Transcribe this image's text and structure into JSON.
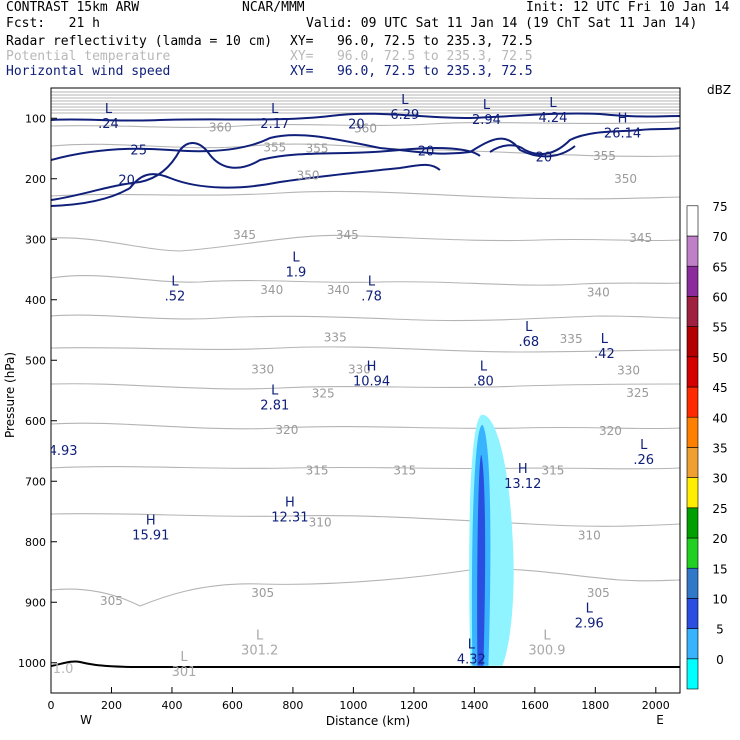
{
  "header": {
    "model": "CONTRAST 15km ARW",
    "org": "NCAR/MMM",
    "init": "Init: 12 UTC Fri 10 Jan 14",
    "fcst": "Fcst:   21 h",
    "valid": "Valid: 09 UTC Sat 11 Jan 14 (19 ChT Sat 11 Jan 14)",
    "fields": [
      {
        "name": "Radar reflectivity (lamda = 10 cm)",
        "xy": "XY=   96.0, 72.5 to 235.3, 72.5",
        "color": "#000000"
      },
      {
        "name": "Potential temperature",
        "xy": "XY=   96.0, 72.5 to 235.3, 72.5",
        "color": "#b8b8b8"
      },
      {
        "name": "Horizontal wind speed",
        "xy": "XY=   96.0, 72.5 to 235.3, 72.5",
        "color": "#10207a"
      }
    ]
  },
  "chart_data": {
    "type": "cross-section",
    "xlabel": "Distance (km)",
    "ylabel": "Pressure (hPa)",
    "xlim": [
      0,
      2080
    ],
    "ylim": [
      1050,
      50
    ],
    "xticks": [
      0,
      200,
      400,
      600,
      800,
      1000,
      1200,
      1400,
      1600,
      1800,
      2000
    ],
    "yticks": [
      100,
      200,
      300,
      400,
      500,
      600,
      700,
      800,
      900,
      1000
    ],
    "left_label": "W",
    "right_label": "E",
    "theta_contour_labels": [
      {
        "text": "360",
        "x": 560,
        "p": 115
      },
      {
        "text": "360",
        "x": 1040,
        "p": 117
      },
      {
        "text": "355",
        "x": 740,
        "p": 148
      },
      {
        "text": "355",
        "x": 880,
        "p": 150
      },
      {
        "text": "355",
        "x": 1830,
        "p": 162
      },
      {
        "text": "350",
        "x": 850,
        "p": 195
      },
      {
        "text": "350",
        "x": 1900,
        "p": 200
      },
      {
        "text": "345",
        "x": 640,
        "p": 293
      },
      {
        "text": "345",
        "x": 980,
        "p": 293
      },
      {
        "text": "345",
        "x": 1950,
        "p": 298
      },
      {
        "text": "340",
        "x": 730,
        "p": 384
      },
      {
        "text": "340",
        "x": 950,
        "p": 384
      },
      {
        "text": "340",
        "x": 1810,
        "p": 388
      },
      {
        "text": "335",
        "x": 940,
        "p": 462
      },
      {
        "text": "335",
        "x": 1720,
        "p": 465
      },
      {
        "text": "330",
        "x": 700,
        "p": 515
      },
      {
        "text": "330",
        "x": 1020,
        "p": 515
      },
      {
        "text": "330",
        "x": 1910,
        "p": 517
      },
      {
        "text": "325",
        "x": 900,
        "p": 555
      },
      {
        "text": "325",
        "x": 1940,
        "p": 554
      },
      {
        "text": "320",
        "x": 780,
        "p": 615
      },
      {
        "text": "320",
        "x": 1850,
        "p": 617
      },
      {
        "text": "315",
        "x": 880,
        "p": 682
      },
      {
        "text": "315",
        "x": 1170,
        "p": 682
      },
      {
        "text": "315",
        "x": 1660,
        "p": 682
      },
      {
        "text": "310",
        "x": 890,
        "p": 768
      },
      {
        "text": "310",
        "x": 1780,
        "p": 790
      },
      {
        "text": "305",
        "x": 200,
        "p": 898
      },
      {
        "text": "305",
        "x": 700,
        "p": 885
      },
      {
        "text": "305",
        "x": 1810,
        "p": 885
      }
    ],
    "wind_contour_labels": [
      {
        "text": "20",
        "x": 1010,
        "p": 110
      },
      {
        "text": "20",
        "x": 1240,
        "p": 155
      },
      {
        "text": "20",
        "x": 1630,
        "p": 165
      },
      {
        "text": "25",
        "x": 290,
        "p": 153
      },
      {
        "text": "20",
        "x": 250,
        "p": 203
      }
    ],
    "wind_extrema": [
      {
        "type": "L",
        "value": ".24",
        "x": 190,
        "p": 95
      },
      {
        "type": "L",
        "value": "2.17",
        "x": 740,
        "p": 95
      },
      {
        "type": "L",
        "value": "6.29",
        "x": 1170,
        "p": 80
      },
      {
        "type": "L",
        "value": "2.94",
        "x": 1440,
        "p": 88
      },
      {
        "type": "L",
        "value": "4.24",
        "x": 1660,
        "p": 85
      },
      {
        "type": "H",
        "value": "26.14",
        "x": 1890,
        "p": 110
      },
      {
        "type": "L",
        "value": "1.9",
        "x": 810,
        "p": 340
      },
      {
        "type": "L",
        "value": ".52",
        "x": 410,
        "p": 380
      },
      {
        "type": "L",
        "value": ".78",
        "x": 1060,
        "p": 380
      },
      {
        "type": "L",
        "value": ".68",
        "x": 1580,
        "p": 455
      },
      {
        "type": "L",
        "value": ".42",
        "x": 1830,
        "p": 475
      },
      {
        "type": "H",
        "value": "10.94",
        "x": 1060,
        "p": 520
      },
      {
        "type": "L",
        "value": ".80",
        "x": 1430,
        "p": 520
      },
      {
        "type": "L",
        "value": "2.81",
        "x": 740,
        "p": 560
      },
      {
        "type": "L",
        "value": ".26",
        "x": 1960,
        "p": 650
      },
      {
        "type": "H",
        "value": "13.12",
        "x": 1560,
        "p": 690
      },
      {
        "type": "H",
        "value": "12.31",
        "x": 790,
        "p": 745
      },
      {
        "type": "H",
        "value": "15.91",
        "x": 330,
        "p": 775
      },
      {
        "type": "L",
        "value": "2.96",
        "x": 1780,
        "p": 920
      },
      {
        "type": "L",
        "value": "4.32",
        "x": 1390,
        "p": 980
      }
    ],
    "theta_extrema": [
      {
        "type": "L",
        "value": "301.2",
        "x": 690,
        "p": 965
      },
      {
        "type": "L",
        "value": "300.9",
        "x": 1640,
        "p": 965
      },
      {
        "type": "L",
        "value": "301",
        "x": 440,
        "p": 1000
      }
    ],
    "edge_labels": [
      {
        "text": "4.93",
        "x": 40,
        "p": 650,
        "color": "#10207a"
      },
      {
        "text": "1.0",
        "x": 40,
        "p": 1010,
        "color": "#b8b8b8"
      }
    ],
    "reflectivity_legend": {
      "title": "dBZ",
      "levels": [
        "0",
        "5",
        "10",
        "15",
        "20",
        "25",
        "30",
        "35",
        "40",
        "45",
        "50",
        "55",
        "60",
        "65",
        "70",
        "75"
      ],
      "colors": [
        "#00ffff",
        "#38b4ff",
        "#2a4fe0",
        "#3278c8",
        "#22d022",
        "#00a000",
        "#ffee00",
        "#f0a030",
        "#ff8000",
        "#ff2a00",
        "#d40000",
        "#b40000",
        "#a02040",
        "#8c2c9c",
        "#c080c8",
        "#ffffff"
      ]
    },
    "reflectivity_core": {
      "x": 1420,
      "p_top": 590,
      "p_bottom": 1005,
      "max_dBZ": 20
    }
  }
}
